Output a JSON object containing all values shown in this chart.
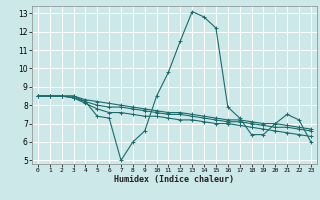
{
  "title": "",
  "xlabel": "Humidex (Indice chaleur)",
  "bg_color": "#cce8e8",
  "line_color": "#1a6b6b",
  "grid_color": "#ffffff",
  "xlim": [
    -0.5,
    23.5
  ],
  "ylim": [
    4.8,
    13.4
  ],
  "xticks": [
    0,
    1,
    2,
    3,
    4,
    5,
    6,
    7,
    8,
    9,
    10,
    11,
    12,
    13,
    14,
    15,
    16,
    17,
    18,
    19,
    20,
    21,
    22,
    23
  ],
  "yticks": [
    5,
    6,
    7,
    8,
    9,
    10,
    11,
    12,
    13
  ],
  "lines": [
    {
      "x": [
        0,
        1,
        2,
        3,
        4,
        5,
        6,
        7,
        8,
        9,
        10,
        11,
        12,
        13,
        14,
        15,
        16,
        17,
        18,
        19,
        20,
        21,
        22,
        23
      ],
      "y": [
        8.5,
        8.5,
        8.5,
        8.5,
        8.2,
        7.4,
        7.3,
        5.0,
        6.0,
        6.6,
        8.5,
        9.8,
        11.5,
        13.1,
        12.8,
        12.2,
        7.9,
        7.3,
        6.4,
        6.4,
        7.0,
        7.5,
        7.2,
        6.0
      ]
    },
    {
      "x": [
        0,
        1,
        2,
        3,
        4,
        5,
        6,
        7,
        8,
        9,
        10,
        11,
        12,
        13,
        14,
        15,
        16,
        17,
        18,
        19,
        20,
        21,
        22,
        23
      ],
      "y": [
        8.5,
        8.5,
        8.5,
        8.4,
        8.1,
        7.8,
        7.6,
        7.6,
        7.5,
        7.4,
        7.4,
        7.3,
        7.2,
        7.2,
        7.1,
        7.0,
        7.0,
        6.9,
        6.8,
        6.7,
        6.6,
        6.5,
        6.4,
        6.3
      ]
    },
    {
      "x": [
        0,
        1,
        2,
        3,
        4,
        5,
        6,
        7,
        8,
        9,
        10,
        11,
        12,
        13,
        14,
        15,
        16,
        17,
        18,
        19,
        20,
        21,
        22,
        23
      ],
      "y": [
        8.5,
        8.5,
        8.5,
        8.4,
        8.2,
        8.0,
        7.9,
        7.9,
        7.8,
        7.7,
        7.6,
        7.5,
        7.5,
        7.4,
        7.3,
        7.2,
        7.1,
        7.1,
        7.0,
        6.9,
        6.8,
        6.8,
        6.7,
        6.6
      ]
    },
    {
      "x": [
        0,
        1,
        2,
        3,
        4,
        5,
        6,
        7,
        8,
        9,
        10,
        11,
        12,
        13,
        14,
        15,
        16,
        17,
        18,
        19,
        20,
        21,
        22,
        23
      ],
      "y": [
        8.5,
        8.5,
        8.5,
        8.5,
        8.3,
        8.2,
        8.1,
        8.0,
        7.9,
        7.8,
        7.7,
        7.6,
        7.6,
        7.5,
        7.4,
        7.3,
        7.2,
        7.2,
        7.1,
        7.0,
        7.0,
        6.9,
        6.8,
        6.7
      ]
    }
  ]
}
